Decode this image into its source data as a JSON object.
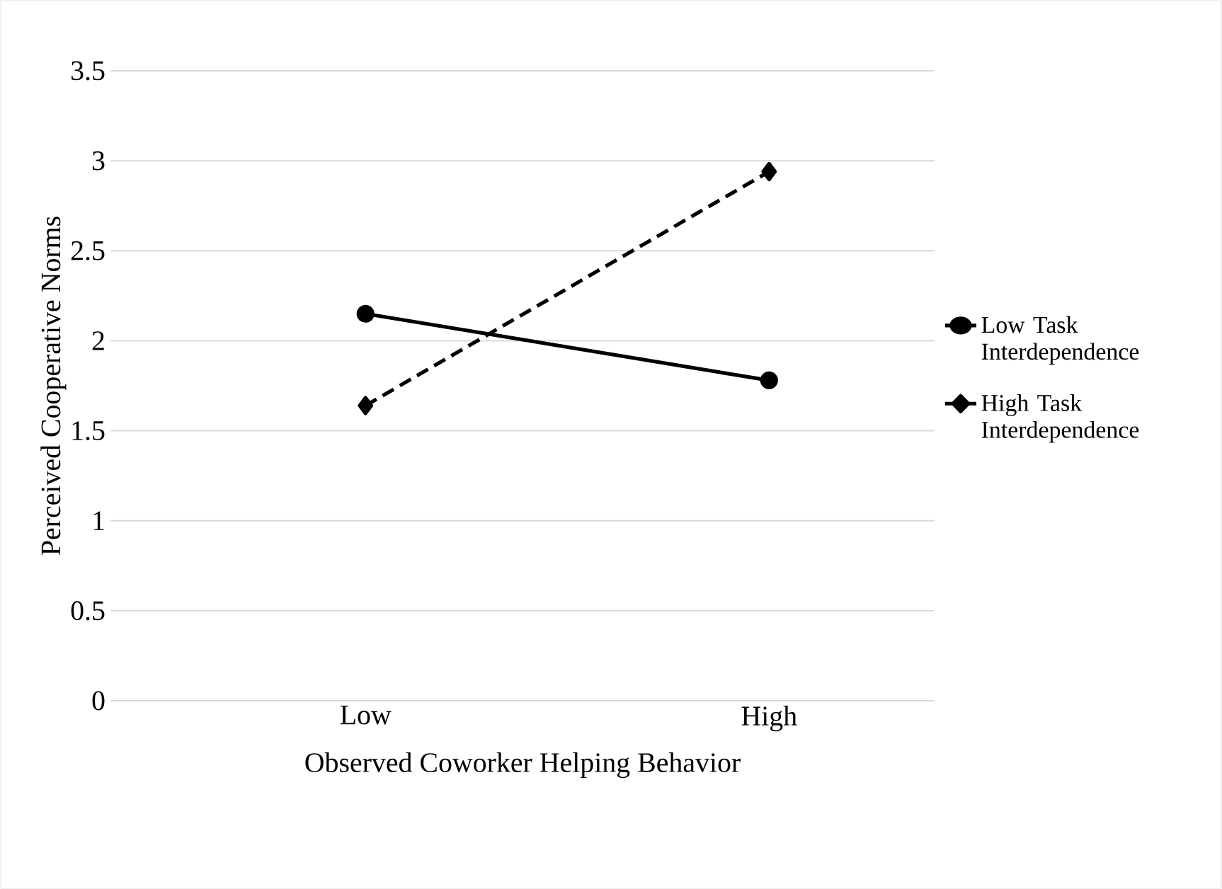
{
  "chart_data": {
    "type": "line",
    "xlabel": "Observed Coworker Helping Behavior",
    "ylabel": "Perceived Cooperative Norms",
    "categories": [
      "Low",
      "High"
    ],
    "series": [
      {
        "name": "Low Task Interdependence",
        "color": "#000000",
        "values": [
          2.15,
          1.78
        ],
        "marker": "circle",
        "line_style": "solid"
      },
      {
        "name": "High Task Interdependence",
        "color": "#000000",
        "values": [
          1.64,
          2.94
        ],
        "marker": "diamond",
        "line_style": "dashed"
      }
    ],
    "ylim": [
      0,
      3.5
    ],
    "yticks": [
      0,
      0.5,
      1,
      1.5,
      2,
      2.5,
      3,
      3.5
    ],
    "grid": "y",
    "legend": "right"
  }
}
